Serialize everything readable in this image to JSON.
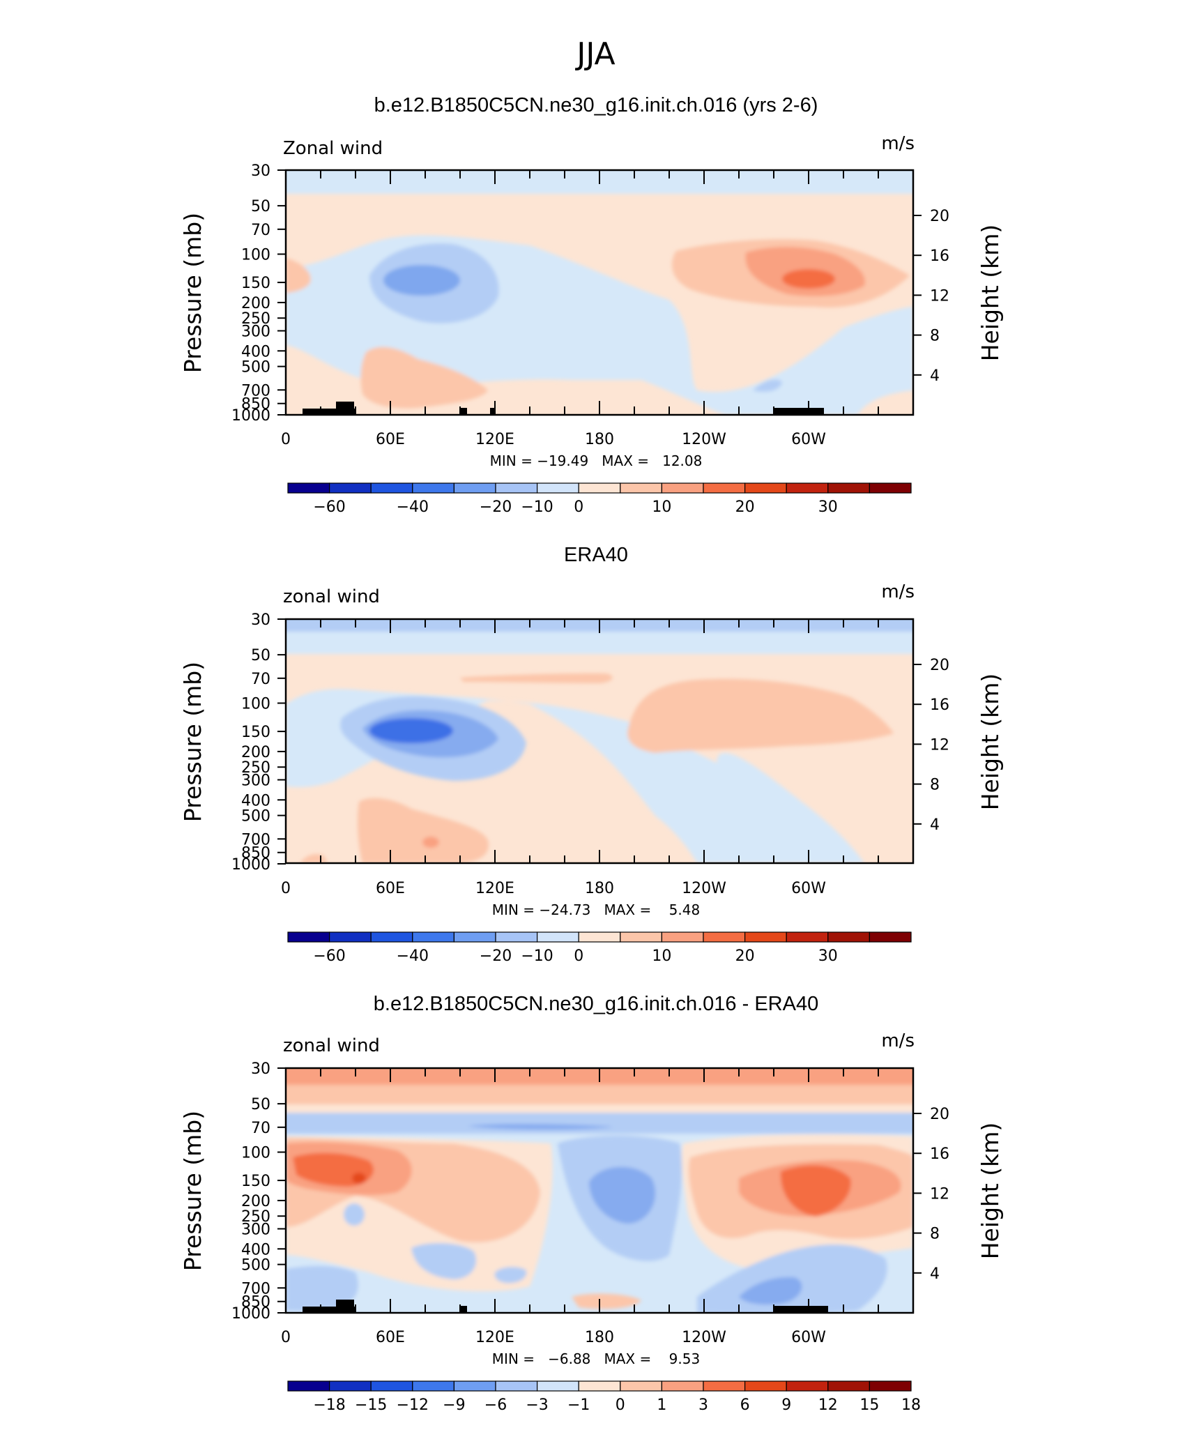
{
  "figure": {
    "season_title": "JJA"
  },
  "chart_data": [
    {
      "type": "heatmap",
      "title": "b.e12.B1850C5CN.ne30_g16.init.ch.016 (yrs 2-6)",
      "left_label": "Zonal wind",
      "right_label": "m/s",
      "ylabel": "Pressure (mb)",
      "ylabel_right": "Height (km)",
      "x_ticks": [
        "0",
        "60E",
        "120E",
        "180",
        "120W",
        "60W"
      ],
      "y_ticks": [
        "30",
        "50",
        "70",
        "100",
        "150",
        "200",
        "250",
        "300",
        "400",
        "500",
        "700",
        "850",
        "1000"
      ],
      "y_ticks_right": [
        "20",
        "16",
        "12",
        "8",
        "4"
      ],
      "stats": "MIN = −19.49   MAX =   12.08",
      "colorbar_ticks": [
        "−60",
        "−40",
        "−20",
        "−10",
        "0",
        "10",
        "20",
        "30"
      ],
      "value_range": [
        -19.49,
        12.08
      ],
      "features": [
        {
          "kind": "negative jet core",
          "lon": 75,
          "pressure": 150,
          "value": -19.49
        },
        {
          "kind": "positive jet core",
          "lon": 300,
          "pressure": 150,
          "value": 12.08
        },
        {
          "kind": "negative band",
          "lon_range": [
            0,
            360
          ],
          "pressure": 40,
          "value": -3
        }
      ]
    },
    {
      "type": "heatmap",
      "title": "ERA40",
      "left_label": "zonal wind",
      "right_label": "m/s",
      "ylabel": "Pressure (mb)",
      "ylabel_right": "Height (km)",
      "x_ticks": [
        "0",
        "60E",
        "120E",
        "180",
        "120W",
        "60W"
      ],
      "y_ticks": [
        "30",
        "50",
        "70",
        "100",
        "150",
        "200",
        "250",
        "300",
        "400",
        "500",
        "700",
        "850",
        "1000"
      ],
      "y_ticks_right": [
        "20",
        "16",
        "12",
        "8",
        "4"
      ],
      "stats": "MIN = −24.73   MAX =    5.48",
      "colorbar_ticks": [
        "−60",
        "−40",
        "−20",
        "−10",
        "0",
        "10",
        "20",
        "30"
      ],
      "value_range": [
        -24.73,
        5.48
      ],
      "features": [
        {
          "kind": "negative jet core",
          "lon": 75,
          "pressure": 150,
          "value": -24.73
        },
        {
          "kind": "positive region",
          "lon": 300,
          "pressure": 120,
          "value": 5.48
        },
        {
          "kind": "negative band",
          "lon_range": [
            0,
            360
          ],
          "pressure": 35,
          "value": -8
        }
      ]
    },
    {
      "type": "heatmap",
      "title": "b.e12.B1850C5CN.ne30_g16.init.ch.016 - ERA40",
      "left_label": "zonal wind",
      "right_label": "m/s",
      "ylabel": "Pressure (mb)",
      "ylabel_right": "Height (km)",
      "x_ticks": [
        "0",
        "60E",
        "120E",
        "180",
        "120W",
        "60W"
      ],
      "y_ticks": [
        "30",
        "50",
        "70",
        "100",
        "150",
        "200",
        "250",
        "300",
        "400",
        "500",
        "700",
        "850",
        "1000"
      ],
      "y_ticks_right": [
        "20",
        "16",
        "12",
        "8",
        "4"
      ],
      "stats": "MIN =   −6.88   MAX =    9.53",
      "colorbar_ticks": [
        "−18",
        "−15",
        "−12",
        "−9",
        "−6",
        "−3",
        "−1",
        "0",
        "1",
        "3",
        "6",
        "9",
        "12",
        "15",
        "18"
      ],
      "value_range": [
        -6.88,
        9.53
      ],
      "features": [
        {
          "kind": "positive maximum",
          "lon": 45,
          "pressure": 150,
          "value": 9.53
        },
        {
          "kind": "positive maximum",
          "lon": 300,
          "pressure": 150,
          "value": 8
        },
        {
          "kind": "negative minimum",
          "lon": 195,
          "pressure": 170,
          "value": -5
        },
        {
          "kind": "negative minimum",
          "lon": 280,
          "pressure": 700,
          "value": -6.88
        },
        {
          "kind": "positive band",
          "lon_range": [
            0,
            360
          ],
          "pressure": 35,
          "value": 6
        }
      ]
    }
  ]
}
